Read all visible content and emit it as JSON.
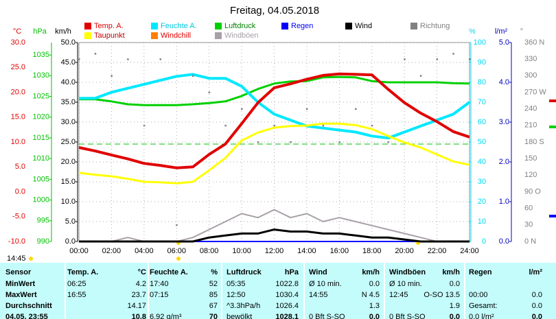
{
  "chart_data": {
    "type": "line",
    "title": "Freitag, 04.05.2018",
    "time_now": "14:45",
    "x": [
      "00:00",
      "01:00",
      "02:00",
      "03:00",
      "04:00",
      "05:00",
      "06:00",
      "07:00",
      "08:00",
      "09:00",
      "10:00",
      "11:00",
      "12:00",
      "13:00",
      "14:00",
      "15:00",
      "16:00",
      "17:00",
      "18:00",
      "19:00",
      "20:00",
      "21:00",
      "22:00",
      "23:00",
      "24:00"
    ],
    "xlim": [
      "00:00",
      "24:00"
    ],
    "xticks": [
      "00:00",
      "02:00",
      "04:00",
      "06:00",
      "08:00",
      "10:00",
      "12:00",
      "14:00",
      "16:00",
      "18:00",
      "20:00",
      "22:00",
      "24:00"
    ],
    "grid": true,
    "axes": {
      "y": {
        "label": "km/h",
        "color": "#000000",
        "lim": [
          0,
          50
        ],
        "ticks": [
          {
            "value": 0,
            "label": "0.0"
          },
          {
            "value": 5,
            "label": "5.0"
          },
          {
            "value": 10,
            "label": "10.0"
          },
          {
            "value": 15,
            "label": "15.0"
          },
          {
            "value": 20,
            "label": "20.0"
          },
          {
            "value": 25,
            "label": "25.0"
          },
          {
            "value": 30,
            "label": "30.0"
          },
          {
            "value": 35,
            "label": "35.0"
          },
          {
            "value": 40,
            "label": "40.0"
          },
          {
            "value": 45,
            "label": "45.0"
          },
          {
            "value": 50,
            "label": "50.0"
          }
        ]
      },
      "y2": {
        "label": "°C",
        "color": "#e00000",
        "lim": [
          -10,
          30
        ],
        "ticks": [
          {
            "value": -10,
            "label": "-10.0"
          },
          {
            "value": -5,
            "label": "-5.0"
          },
          {
            "value": 0,
            "label": "0.0"
          },
          {
            "value": 5,
            "label": "5.0"
          },
          {
            "value": 10,
            "label": "10.0"
          },
          {
            "value": 15,
            "label": "15.0"
          },
          {
            "value": 20,
            "label": "20.0"
          },
          {
            "value": 25,
            "label": "25.0"
          },
          {
            "value": 30,
            "label": "30.0"
          }
        ]
      },
      "y3": {
        "label": "hPa",
        "color": "#00c000",
        "lim": [
          990,
          1038
        ],
        "ticks": [
          990,
          995,
          1000,
          1005,
          1010,
          1015,
          1020,
          1025,
          1030,
          1035
        ]
      },
      "y4": {
        "label": "%",
        "color": "#00d8f0",
        "lim": [
          0,
          100
        ],
        "ticks": [
          0,
          10,
          20,
          30,
          40,
          50,
          60,
          70,
          80,
          90,
          100
        ]
      },
      "y5": {
        "label": "l/m²",
        "color": "#0000c0",
        "lim": [
          0,
          5
        ],
        "ticks": [
          {
            "value": 0,
            "label": "0.0"
          },
          {
            "value": 1,
            "label": "1.0"
          },
          {
            "value": 2,
            "label": "2.0"
          },
          {
            "value": 3,
            "label": "3.0"
          },
          {
            "value": 4,
            "label": "4.0"
          },
          {
            "value": 5,
            "label": "5.0"
          }
        ]
      },
      "y6": {
        "label": "°",
        "color": "#808080",
        "lim": [
          0,
          360
        ],
        "ticks": [
          {
            "value": 0,
            "label": "0  N"
          },
          30,
          60,
          {
            "value": 90,
            "label": "90  O"
          },
          120,
          150,
          {
            "value": 180,
            "label": "180  S"
          },
          210,
          240,
          {
            "value": 270,
            "label": "270  W"
          },
          300,
          330,
          {
            "value": 360,
            "label": "360  N"
          }
        ]
      }
    },
    "reference_line": {
      "value": 1013.5,
      "axis": "y3",
      "color": "#00c000"
    },
    "series": [
      {
        "name": "Temp. A.",
        "color": "#e00000",
        "axis": "y2",
        "values": [
          8.9,
          8.2,
          7.4,
          6.6,
          5.7,
          5.3,
          4.8,
          5.0,
          7.5,
          9.6,
          13.7,
          17.9,
          20.9,
          21.7,
          22.6,
          23.4,
          23.7,
          23.6,
          23.5,
          20.6,
          17.9,
          15.8,
          14.1,
          12.1,
          11.0
        ]
      },
      {
        "name": "Feuchte A.",
        "color": "#00e8ff",
        "axis": "y4",
        "values": [
          72,
          72,
          75,
          77,
          79,
          81,
          83,
          84,
          82,
          82,
          78,
          70,
          64,
          61,
          58,
          57,
          56,
          55,
          53,
          52,
          55,
          58,
          61,
          64,
          70
        ]
      },
      {
        "name": "Luftdruck",
        "color": "#00d000",
        "axis": "y3",
        "values": [
          1024.3,
          1024.3,
          1023.8,
          1023.1,
          1022.9,
          1022.9,
          1022.9,
          1023.1,
          1023.4,
          1023.8,
          1025.1,
          1026.8,
          1028.1,
          1028.6,
          1028.7,
          1029.6,
          1029.7,
          1029.6,
          1028.7,
          1028.4,
          1028.4,
          1028.4,
          1028.4,
          1028.2,
          1028.1
        ]
      },
      {
        "name": "Regen",
        "color": "#0000ff",
        "axis": "y5",
        "values": [
          0,
          0,
          0,
          0,
          0,
          0,
          0,
          0,
          0,
          0,
          0,
          0,
          0,
          0,
          0,
          0,
          0,
          0,
          0,
          0,
          0,
          0,
          0,
          0,
          0
        ]
      },
      {
        "name": "Wind",
        "color": "#000000",
        "axis": "y",
        "values": [
          0,
          0,
          0,
          0,
          0,
          0,
          0,
          0,
          1,
          1.5,
          2,
          2,
          3,
          2.5,
          2.5,
          2,
          2,
          1.5,
          1,
          1,
          0.5,
          0,
          0,
          0,
          0
        ]
      },
      {
        "name": "Richtung",
        "color": "#808080",
        "axis": "y6",
        "values": [
          330,
          340,
          300,
          330,
          210,
          330,
          30,
          300,
          270,
          210,
          240,
          180,
          210,
          180,
          240,
          210,
          180,
          240,
          210,
          180,
          330,
          300,
          330,
          340,
          330
        ]
      },
      {
        "name": "Taupunkt",
        "color": "#ffff00",
        "axis": "y2",
        "values": [
          3.8,
          3.4,
          3.1,
          2.6,
          2.0,
          1.9,
          1.7,
          2.0,
          4.3,
          6.8,
          10.3,
          11.9,
          12.9,
          13.2,
          13.3,
          13.7,
          13.7,
          13.4,
          12.6,
          11.2,
          9.9,
          8.9,
          7.5,
          6.1,
          5.4
        ]
      },
      {
        "name": "Windchill",
        "color": "#ff8000",
        "axis": "y2",
        "values": [
          8.9,
          8.2,
          7.4,
          6.6,
          5.7,
          5.3,
          4.8,
          5.0,
          7.5,
          9.6,
          13.7,
          17.9,
          20.9,
          21.7,
          22.6,
          23.4,
          23.7,
          23.6,
          23.5,
          20.6,
          17.9,
          15.8,
          14.1,
          12.1,
          11.0
        ]
      },
      {
        "name": "Windböen",
        "color": "#a8a0a8",
        "axis": "y",
        "values": [
          0,
          0,
          0,
          1,
          0,
          0,
          0,
          1,
          3,
          5,
          7,
          6,
          8,
          6,
          7,
          5,
          6,
          5,
          4,
          3,
          2,
          1,
          0,
          0,
          0
        ]
      }
    ]
  },
  "table": {
    "header": [
      "Sensor",
      "Temp. A.",
      "°C",
      "Feuchte A.",
      "%",
      "Luftdruck",
      "hPa",
      "Wind",
      "km/h",
      "Windböen",
      "km/h",
      "Regen",
      "l/m²"
    ],
    "rows": [
      [
        "MinWert",
        "06:25",
        "4.2",
        "17:40",
        "52",
        "05:35",
        "1022.8",
        "Ø 10 min.",
        "0.0",
        "Ø 10 min.",
        "0.0",
        null,
        null
      ],
      [
        "MaxWert",
        "16:55",
        "23.7",
        "07:15",
        "85",
        "12:50",
        "1030.4",
        "14:55",
        "N 4.5",
        "12:45",
        "O-SO 13.5",
        "00:00",
        "0.0"
      ],
      [
        "Durchschnitt",
        null,
        "14.17",
        null,
        "67",
        "^3.3hPa/h",
        "1026.4",
        null,
        "1.3",
        null,
        "1.9",
        "Gesamt:",
        "0.0"
      ],
      [
        "04.05. 23:55",
        null,
        "10.8",
        "6.92 g/m³",
        "70",
        "bewölkt",
        "1028.1",
        "0 Bft S-SO",
        "0.0",
        "0 Bft S-SO",
        "0.0",
        "0.0 l/m²",
        "0.0"
      ]
    ]
  }
}
